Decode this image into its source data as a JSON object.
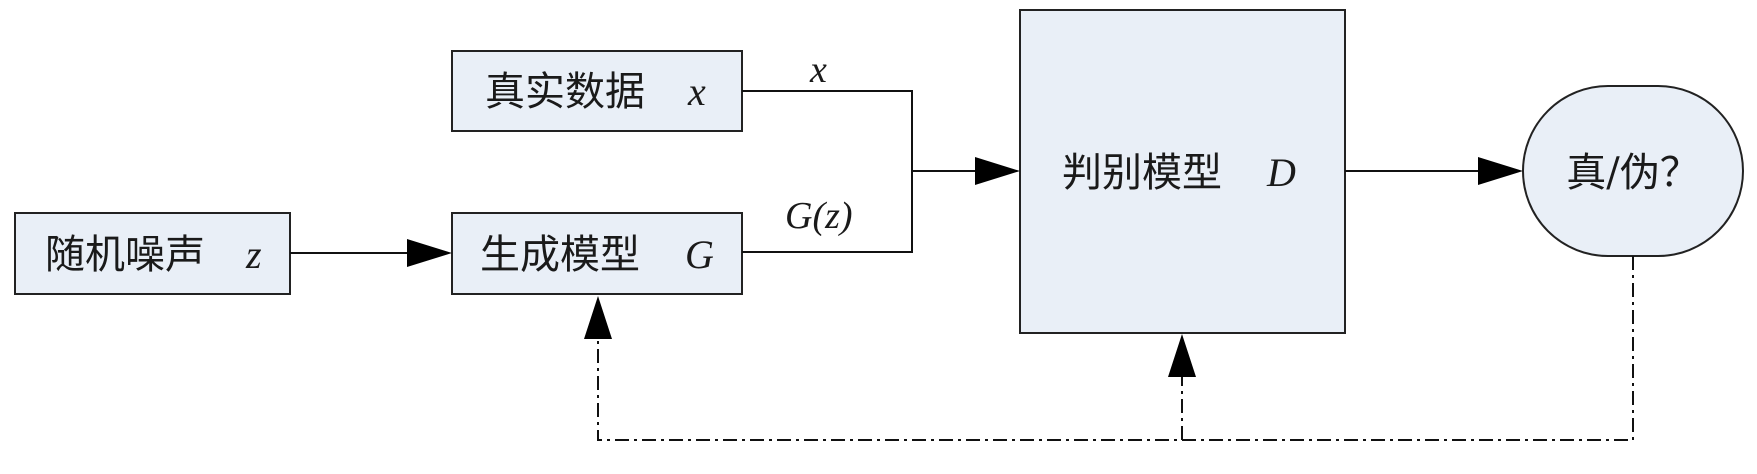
{
  "nodes": {
    "real_data": {
      "label": "真实数据",
      "var": "x"
    },
    "random_noise": {
      "label": "随机噪声",
      "var": "z"
    },
    "generator": {
      "label": "生成模型",
      "var": "G"
    },
    "discriminator": {
      "label": "判别模型",
      "var": "D"
    },
    "output": {
      "label": "真/伪？"
    }
  },
  "edges": {
    "real_data_label": "x",
    "generator_output_label": "G(z)"
  },
  "colors": {
    "box_fill": "#e9eff7",
    "stroke": "#222222"
  }
}
